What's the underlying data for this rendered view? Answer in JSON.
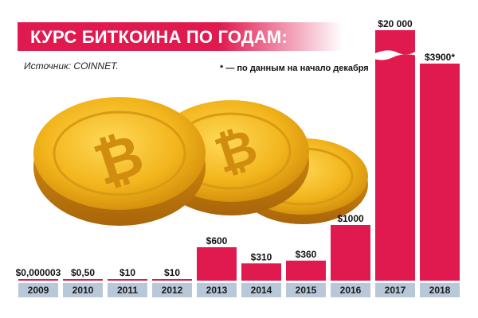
{
  "header": {
    "title": "КУРС БИТКОИНА ПО ГОДАМ:",
    "source": "Источник: COINNET.",
    "footnote": "* — по данным на начало декабря"
  },
  "colors": {
    "bar": "#e0194f",
    "axis_label_bg": "#b9c8d8",
    "coin_gold": "#f2b51c"
  },
  "chart_data": {
    "type": "bar",
    "title": "КУРС БИТКОИНА ПО ГОДАМ:",
    "xlabel": "",
    "ylabel": "",
    "categories": [
      "2009",
      "2010",
      "2011",
      "2012",
      "2013",
      "2014",
      "2015",
      "2016",
      "2017",
      "2018"
    ],
    "values": [
      3e-06,
      0.5,
      10,
      10,
      600,
      310,
      360,
      1000,
      20000,
      3900
    ],
    "value_labels": [
      "$0,000003",
      "$0,50",
      "$10",
      "$10",
      "$600",
      "$310",
      "$360",
      "$1000",
      "$20 000",
      "$3900*"
    ],
    "axis_break": {
      "category": "2017"
    },
    "grid": false,
    "legend": "none"
  }
}
